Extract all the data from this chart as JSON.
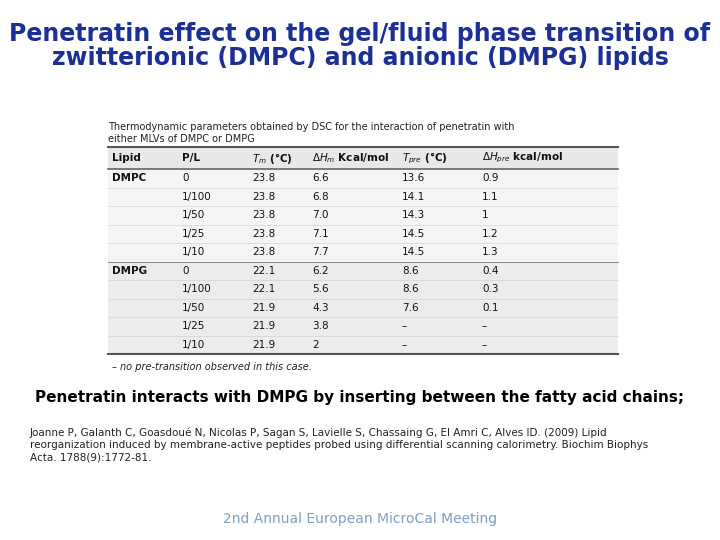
{
  "title_line1": "Penetratin effect on the gel/fluid phase transition of",
  "title_line2": "zwitterionic (DMPC) and anionic (DMPG) lipids",
  "title_color": "#1C2F96",
  "title_fontsize": 17,
  "table_caption_line1": "Thermodynamic parameters obtained by DSC for the interaction of penetratin with",
  "table_caption_line2": "either MLVs of DMPC or DMPG",
  "col_headers": [
    "Lipid",
    "P/L",
    "Tm (°C)",
    "ΔHm Kcal/mol",
    "Tpre (°C)",
    "ΔHpre kcal/mol"
  ],
  "dmpc_rows": [
    [
      "DMPC",
      "0",
      "23.8",
      "6.6",
      "13.6",
      "0.9"
    ],
    [
      "",
      "1/100",
      "23.8",
      "6.8",
      "14.1",
      "1.1"
    ],
    [
      "",
      "1/50",
      "23.8",
      "7.0",
      "14.3",
      "1"
    ],
    [
      "",
      "1/25",
      "23.8",
      "7.1",
      "14.5",
      "1.2"
    ],
    [
      "",
      "1/10",
      "23.8",
      "7.7",
      "14.5",
      "1.3"
    ]
  ],
  "dmpg_rows": [
    [
      "DMPG",
      "0",
      "22.1",
      "6.2",
      "8.6",
      "0.4"
    ],
    [
      "",
      "1/100",
      "22.1",
      "5.6",
      "8.6",
      "0.3"
    ],
    [
      "",
      "1/50",
      "21.9",
      "4.3",
      "7.6",
      "0.1"
    ],
    [
      "",
      "1/25",
      "21.9",
      "3.8",
      "–",
      "–"
    ],
    [
      "",
      "1/10",
      "21.9",
      "2",
      "–",
      "–"
    ]
  ],
  "footnote": "– no pre-transition observed in this case.",
  "bold_text": "Penetratin interacts with DMPG by inserting between the fatty acid chains;",
  "bold_text_fontsize": 11,
  "reference_line1": "Joanne P, Galanth C, Goasdoué N, Nicolas P, Sagan S, Lavielle S, Chassaing G, El Amri C, Alves ID. (2009) Lipid",
  "reference_line2": "reorganization induced by membrane-active peptides probed using differential scanning calorimetry. Biochim Biophys",
  "reference_line3": "Acta. 1788(9):1772-81.",
  "footer": "2nd Annual European MicroCal Meeting",
  "footer_color": "#7F9FC8",
  "bg_color": "#FFFFFF",
  "table_light_bg": "#F2F2F2",
  "table_white_bg": "#FFFFFF",
  "border_color": "#888888",
  "text_color": "#222222"
}
